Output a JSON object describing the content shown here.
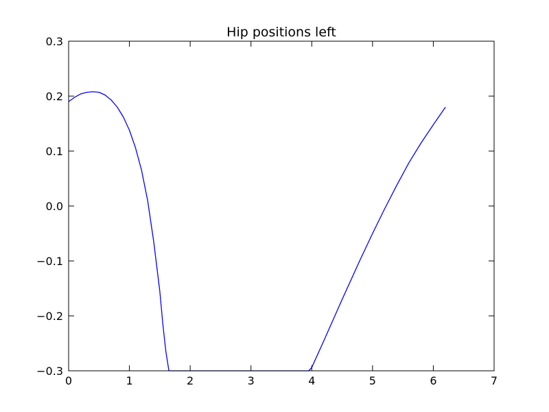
{
  "chart_data": {
    "type": "line",
    "title": "Hip positions left",
    "xlabel": "",
    "ylabel": "",
    "xlim": [
      0,
      7
    ],
    "ylim": [
      -0.3,
      0.3
    ],
    "x_ticks": [
      0,
      1,
      2,
      3,
      4,
      5,
      6,
      7
    ],
    "x_tick_labels": [
      "0",
      "1",
      "2",
      "3",
      "4",
      "5",
      "6",
      "7"
    ],
    "y_ticks": [
      -0.3,
      -0.2,
      -0.1,
      0.0,
      0.1,
      0.2,
      0.3
    ],
    "y_tick_labels": [
      "−0.3",
      "−0.2",
      "−0.1",
      "0.0",
      "0.1",
      "0.2",
      "0.3"
    ],
    "grid": false,
    "series": [
      {
        "color": "#0000ff",
        "x": [
          0.0,
          0.1,
          0.2,
          0.3,
          0.4,
          0.5,
          0.6,
          0.7,
          0.8,
          0.9,
          1.0,
          1.1,
          1.2,
          1.3,
          1.4,
          1.5,
          1.55,
          1.6,
          1.65,
          2.0,
          2.5,
          3.0,
          3.5,
          3.9,
          3.95,
          4.0,
          4.2,
          4.5,
          4.8,
          5.0,
          5.2,
          5.4,
          5.6,
          5.8,
          6.0,
          6.1,
          6.2
        ],
        "y": [
          0.19,
          0.198,
          0.204,
          0.207,
          0.208,
          0.207,
          0.202,
          0.193,
          0.18,
          0.162,
          0.138,
          0.106,
          0.065,
          0.01,
          -0.065,
          -0.155,
          -0.215,
          -0.265,
          -0.3,
          -0.3,
          -0.3,
          -0.3,
          -0.3,
          -0.3,
          -0.3,
          -0.294,
          -0.245,
          -0.17,
          -0.097,
          -0.05,
          -0.005,
          0.038,
          0.079,
          0.115,
          0.148,
          0.164,
          0.18
        ]
      }
    ]
  }
}
